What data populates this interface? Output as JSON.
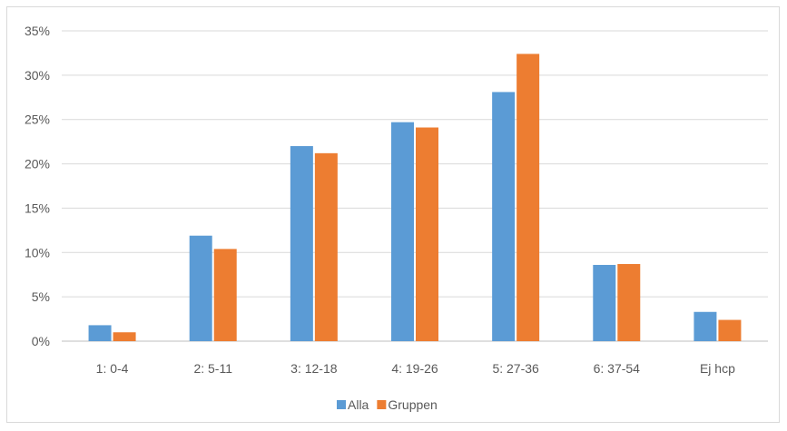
{
  "chart_data": {
    "type": "bar",
    "categories": [
      "1: 0-4",
      "2: 5-11",
      "3: 12-18",
      "4: 19-26",
      "5: 27-36",
      "6: 37-54",
      "Ej hcp"
    ],
    "series": [
      {
        "name": "Alla",
        "color": "#5b9bd5",
        "values": [
          1.8,
          11.9,
          22.0,
          24.7,
          28.1,
          8.6,
          3.3
        ]
      },
      {
        "name": "Gruppen",
        "color": "#ed7d31",
        "values": [
          1.0,
          10.4,
          21.2,
          24.1,
          32.4,
          8.7,
          2.4
        ]
      }
    ],
    "y_tick_labels": [
      "0%",
      "5%",
      "10%",
      "15%",
      "20%",
      "25%",
      "30%",
      "35%"
    ],
    "ylim": [
      0,
      35
    ],
    "grid": true,
    "legend_position": "bottom"
  }
}
